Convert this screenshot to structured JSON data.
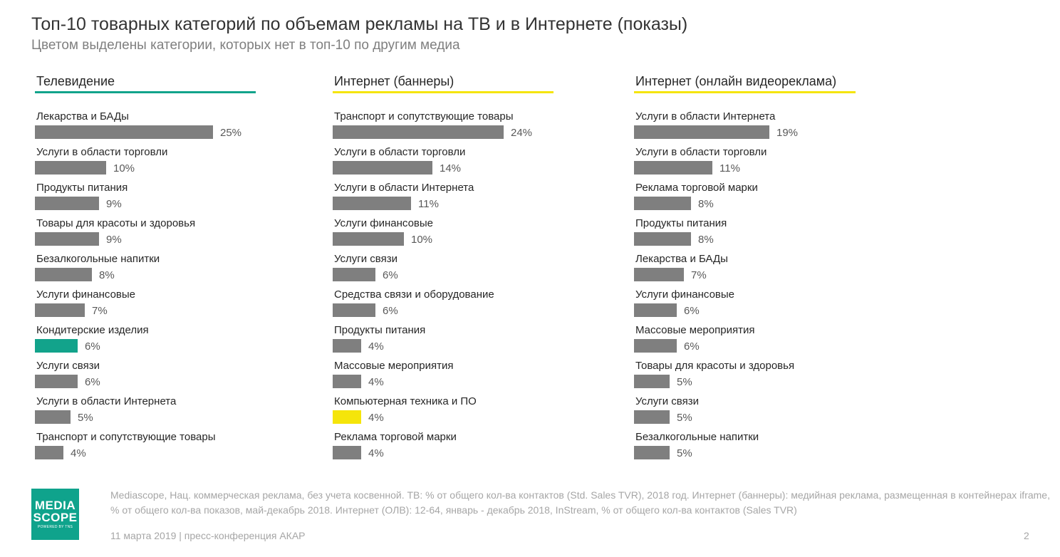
{
  "title": "Топ-10 товарных категорий по объемам рекламы на ТВ и в Интернете (показы)",
  "subtitle": "Цветом выделены категории, которых нет в топ-10 по другим медиа",
  "colors": {
    "bar": "#7f7f7f",
    "tv_accent": "#12a38b",
    "internet_accent": "#f5e50a"
  },
  "chart_data": [
    {
      "type": "bar",
      "orientation": "horizontal",
      "title": "Телевидение",
      "accent_color": "#12a38b",
      "categories": [
        "Лекарства и БАДы",
        "Услуги в области торговли",
        "Продукты питания",
        "Товары для красоты и здоровья",
        "Безалкогольные напитки",
        "Услуги финансовые",
        "Кондитерские изделия",
        "Услуги связи",
        "Услуги в области Интернета",
        "Транспорт и сопутствующие товары"
      ],
      "values": [
        25,
        10,
        9,
        9,
        8,
        7,
        6,
        6,
        5,
        4
      ],
      "value_labels": [
        "25%",
        "10%",
        "9%",
        "9%",
        "8%",
        "7%",
        "6%",
        "6%",
        "5%",
        "4%"
      ],
      "highlighted": [
        false,
        false,
        false,
        false,
        false,
        false,
        true,
        false,
        false,
        false
      ],
      "unit": "%"
    },
    {
      "type": "bar",
      "orientation": "horizontal",
      "title": "Интернет (баннеры)",
      "accent_color": "#f5e50a",
      "categories": [
        "Транспорт и сопутствующие товары",
        "Услуги в области торговли",
        "Услуги в области Интернета",
        "Услуги финансовые",
        "Услуги связи",
        "Средства связи и оборудование",
        "Продукты питания",
        "Массовые мероприятия",
        "Компьютерная техника и ПО",
        "Реклама торговой марки"
      ],
      "values": [
        24,
        14,
        11,
        10,
        6,
        6,
        4,
        4,
        4,
        4
      ],
      "value_labels": [
        "24%",
        "14%",
        "11%",
        "10%",
        "6%",
        "6%",
        "4%",
        "4%",
        "4%",
        "4%"
      ],
      "highlighted": [
        false,
        false,
        false,
        false,
        false,
        false,
        false,
        false,
        true,
        false
      ],
      "unit": "%"
    },
    {
      "type": "bar",
      "orientation": "horizontal",
      "title": "Интернет (онлайн видеореклама)",
      "accent_color": "#f5e50a",
      "categories": [
        "Услуги в области Интернета",
        "Услуги в области торговли",
        "Реклама торговой марки",
        "Продукты питания",
        "Лекарства и БАДы",
        "Услуги финансовые",
        "Массовые мероприятия",
        "Товары для красоты и здоровья",
        "Услуги связи",
        "Безалкогольные напитки"
      ],
      "values": [
        19,
        11,
        8,
        8,
        7,
        6,
        6,
        5,
        5,
        5
      ],
      "value_labels": [
        "19%",
        "11%",
        "8%",
        "8%",
        "7%",
        "6%",
        "6%",
        "5%",
        "5%",
        "5%"
      ],
      "highlighted": [
        false,
        false,
        false,
        false,
        false,
        false,
        false,
        false,
        false,
        false
      ],
      "unit": "%"
    }
  ],
  "logo": {
    "line1": "MEDIA",
    "line2": "SCOPE",
    "line3": "POWERED BY TNS"
  },
  "footer": {
    "source": "Mediascope, Нац. коммерческая реклама, без учета косвенной. ТВ: % от общего кол-ва контактов (Std. Sales TVR), 2018 год. Интернет (баннеры): медийная реклама, размещенная в контейнерах iframe, % от общего кол-ва показов, май-декабрь 2018. Интернет (ОЛВ): 12-64, январь - декабрь 2018, InStream, % от общего кол-ва контактов (Sales TVR)",
    "date": "11 марта 2019 | пресс-конференция АКАР",
    "page": "2"
  }
}
